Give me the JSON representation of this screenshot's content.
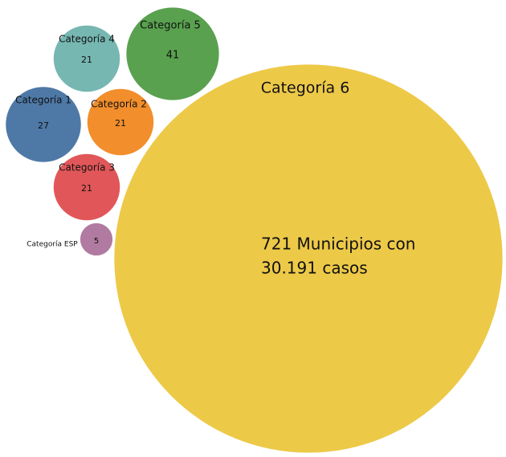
{
  "chart_data": {
    "type": "bubble",
    "categories": [
      "Categoría 1",
      "Categoría 2",
      "Categoría 3",
      "Categoría 4",
      "Categoría 5",
      "Categoría 6",
      "Categoría ESP"
    ],
    "values": [
      27,
      21,
      21,
      21,
      41,
      721,
      5
    ],
    "value_labels": [
      "27",
      "21",
      "21",
      "21",
      "41",
      "721 Municipios con",
      "5"
    ],
    "colors": [
      "#4e79a7",
      "#f28e2b",
      "#e15759",
      "#76b7b2",
      "#59a14f",
      "#edc948",
      "#b07aa1"
    ],
    "annotation": "30.191 casos"
  }
}
